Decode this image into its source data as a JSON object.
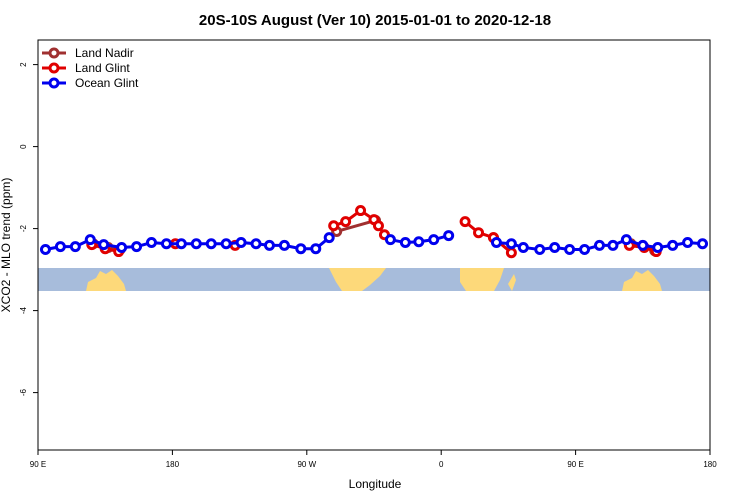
{
  "chart_data": {
    "type": "line",
    "title": "20S-10S August (Ver 10)   2015-01-01 to 2020-12-18",
    "x_label": "Longitude",
    "y_label": "XCO2 - MLO trend (ppm)",
    "xlim": [
      90,
      540
    ],
    "xticks": [
      {
        "value": 90,
        "label": "90 E"
      },
      180,
      {
        "value": 270,
        "label": "90 W"
      },
      {
        "value": 360,
        "label": "0"
      },
      {
        "value": 450,
        "label": "90 E"
      },
      {
        "value": 540,
        "label": "180"
      }
    ],
    "ylim": [
      -7.4,
      2.6
    ],
    "yticks": [
      2,
      0,
      -2,
      -4,
      -6
    ],
    "legend": "top-left",
    "series": [
      {
        "name": "Land Nadir",
        "color": "#a03030",
        "x": [
          127,
          137,
          145,
          null,
          290,
          316,
          null,
          395,
          null,
          487,
          503
        ],
        "values": [
          -2.37,
          -2.46,
          -2.51,
          null,
          -2.07,
          -1.8,
          null,
          -2.22,
          null,
          -2.37,
          -2.54
        ]
      },
      {
        "name": "Land Glint",
        "color": "#e00000",
        "x": [
          126,
          135,
          144,
          null,
          182,
          null,
          222,
          null,
          288,
          296,
          306,
          315,
          318,
          322,
          null,
          376,
          385,
          395,
          407,
          null,
          486,
          496,
          504
        ],
        "values": [
          -2.39,
          -2.49,
          -2.56,
          null,
          -2.37,
          null,
          -2.41,
          null,
          -1.93,
          -1.83,
          -1.56,
          -1.78,
          -1.93,
          -2.15,
          null,
          -1.83,
          -2.1,
          -2.22,
          -2.59,
          null,
          -2.41,
          -2.46,
          -2.56
        ]
      },
      {
        "name": "Ocean Glint",
        "color": "#0000ee",
        "x": [
          95,
          105,
          115,
          125,
          134,
          146,
          156,
          166,
          176,
          186,
          196,
          206,
          216,
          226,
          236,
          245,
          255,
          266,
          276,
          285,
          null,
          326,
          336,
          345,
          355,
          365,
          null,
          397,
          407,
          415,
          426,
          436,
          446,
          456,
          466,
          475,
          484,
          495,
          505,
          515,
          525,
          535
        ],
        "values": [
          -2.51,
          -2.44,
          -2.44,
          -2.27,
          -2.39,
          -2.46,
          -2.44,
          -2.34,
          -2.37,
          -2.37,
          -2.37,
          -2.37,
          -2.37,
          -2.34,
          -2.37,
          -2.41,
          -2.41,
          -2.49,
          -2.49,
          -2.22,
          null,
          -2.27,
          -2.34,
          -2.32,
          -2.27,
          -2.17,
          null,
          -2.34,
          -2.37,
          -2.46,
          -2.51,
          -2.46,
          -2.51,
          -2.51,
          -2.41,
          -2.41,
          -2.27,
          -2.41,
          -2.46,
          -2.41,
          -2.34,
          -2.37
        ]
      }
    ]
  }
}
